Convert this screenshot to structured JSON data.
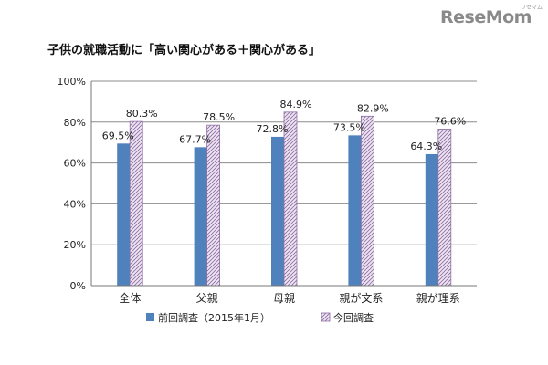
{
  "brand": {
    "logo_text": "ReseMom",
    "logo_sub": "リセマム"
  },
  "chart_data": {
    "type": "bar",
    "title": "子供の就職活動に「高い関心がある＋関心がある」",
    "categories": [
      "全体",
      "父親",
      "母親",
      "親が文系",
      "親が理系"
    ],
    "series": [
      {
        "name": "前回調査（2015年1月）",
        "values": [
          69.5,
          67.7,
          72.8,
          73.5,
          64.3
        ],
        "color": "#4f81bd",
        "pattern": "solid"
      },
      {
        "name": "今回調査",
        "values": [
          80.3,
          78.5,
          84.9,
          82.9,
          76.6
        ],
        "color": "#d9c6e3",
        "pattern": "hatched"
      }
    ],
    "data_labels": [
      [
        "69.5%",
        "67.7%",
        "72.8%",
        "73.5%",
        "64.3%"
      ],
      [
        "80.3%",
        "78.5%",
        "84.9%",
        "82.9%",
        "76.6%"
      ]
    ],
    "ylim": [
      0,
      100
    ],
    "yticks": [
      0,
      20,
      40,
      60,
      80,
      100
    ],
    "ytick_labels": [
      "0%",
      "20%",
      "40%",
      "60%",
      "80%",
      "100%"
    ],
    "xlabel": "",
    "ylabel": "",
    "grid": true,
    "legend_position": "bottom"
  }
}
